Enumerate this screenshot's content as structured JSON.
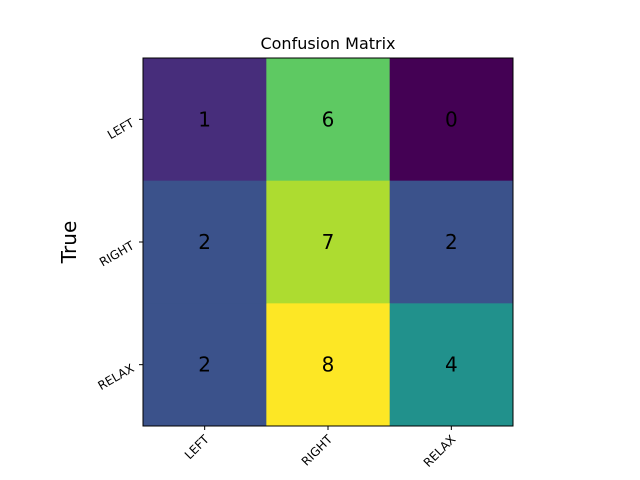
{
  "chart_data": {
    "type": "heatmap",
    "title": "Confusion Matrix",
    "ylabel": "True",
    "xlabel": "",
    "x_categories": [
      "LEFT",
      "RIGHT",
      "RELAX"
    ],
    "y_categories": [
      "LEFT",
      "RIGHT",
      "RELAX"
    ],
    "values": [
      [
        1,
        6,
        0
      ],
      [
        2,
        7,
        2
      ],
      [
        2,
        8,
        4
      ]
    ],
    "value_range": [
      0,
      8
    ],
    "colormap": "viridis",
    "cell_colors": [
      [
        "#472d7b",
        "#5ec962",
        "#440154"
      ],
      [
        "#3b528b",
        "#addc30",
        "#3b528b"
      ],
      [
        "#3b528b",
        "#fde725",
        "#21918c"
      ]
    ],
    "value_text_color": "#000000",
    "grid": false,
    "legend": "none"
  }
}
